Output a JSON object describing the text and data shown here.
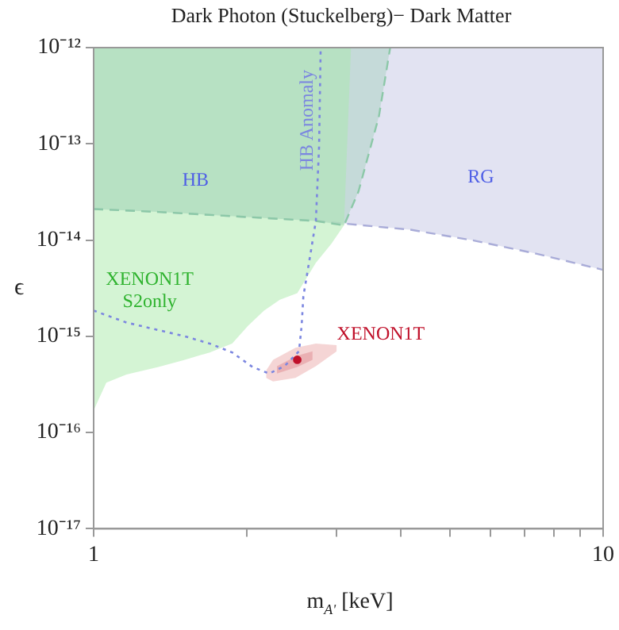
{
  "chart_data": {
    "type": "area",
    "title": "Dark Photon (Stuckelberg)− Dark Matter",
    "xlabel": "m$_{A'}$ [keV]",
    "ylabel": "ϵ",
    "log": "xy",
    "grid": false,
    "legend": false,
    "xlim": [
      1,
      10
    ],
    "ylim": [
      1e-17,
      1e-12
    ],
    "xticks": [
      1,
      {
        "value": 2,
        "label": null
      },
      {
        "value": 3,
        "label": null
      },
      {
        "value": 4,
        "label": null
      },
      {
        "value": 5,
        "label": null
      },
      {
        "value": 6,
        "label": null
      },
      {
        "value": 7,
        "label": null
      },
      {
        "value": 8,
        "label": null
      },
      {
        "value": 9,
        "label": null
      },
      10
    ],
    "yticks": [
      {
        "value": 1e-17,
        "label": "10⁻¹⁷"
      },
      {
        "value": 1e-16,
        "label": "10⁻¹⁶"
      },
      {
        "value": 1e-15,
        "label": "10⁻¹⁵"
      },
      {
        "value": 1e-14,
        "label": "10⁻¹⁴"
      },
      {
        "value": 1e-13,
        "label": "10⁻¹³"
      },
      {
        "value": 1e-12,
        "label": "10⁻¹²"
      }
    ],
    "series": [
      {
        "type": "line",
        "color": "#a9acd8",
        "line_style": "dashed",
        "x": [
          1,
          1.34,
          1.91,
          2.73,
          4.19,
          5.57,
          7.41,
          10
        ],
        "values": [
          2.1e-14,
          1.96e-14,
          1.76e-14,
          1.58e-14,
          1.28e-14,
          9.9e-15,
          7.2e-15,
          4.9e-15
        ],
        "lower": [
          2.1e-14,
          1.96e-14,
          1.76e-14,
          1.58e-14,
          1.28e-14,
          9.9e-15,
          7.2e-15,
          4.9e-15
        ],
        "upper": [
          1e-12,
          1e-12,
          1e-12,
          1e-12,
          1e-12,
          1e-12,
          1e-12,
          1e-12
        ]
      },
      {
        "color": "#c4f0c4",
        "x": [
          1,
          1.059,
          1.16,
          1.34,
          1.51,
          1.69,
          1.87,
          2.01,
          2.16,
          2.32,
          2.51,
          2.73,
          2.93,
          3.1,
          3.2
        ],
        "values": [
          null,
          null,
          null,
          null,
          null,
          null,
          null,
          null,
          null,
          null,
          null,
          null,
          null,
          null,
          null
        ],
        "lower": [
          1.7e-16,
          3.3e-16,
          4e-16,
          4.8e-16,
          5.7e-16,
          6.8e-16,
          8.4e-16,
          1.29e-15,
          1.85e-15,
          2.4e-15,
          2.8e-15,
          5.8e-15,
          9.2e-15,
          1.42e-14,
          1e-12
        ],
        "upper": [
          1e-12,
          1e-12,
          1e-12,
          1e-12,
          1e-12,
          1e-12,
          1e-12,
          1e-12,
          1e-12,
          1e-12,
          1e-12,
          1e-12,
          1e-12,
          1e-12,
          1e-12
        ]
      },
      {
        "type": "line",
        "color": "#8cc8a8",
        "line_style": "dashed",
        "x": [
          1,
          1.34,
          1.91,
          2.73,
          3.1,
          3.31,
          3.63,
          3.82
        ],
        "values": [
          2.1e-14,
          1.96e-14,
          1.76e-14,
          1.58e-14,
          1.42e-14,
          3.2e-14,
          1.93e-13,
          1e-12
        ],
        "lower": [
          2.1e-14,
          1.96e-14,
          1.76e-14,
          1.58e-14,
          1.42e-14,
          3.2e-14,
          1.93e-13,
          1e-12
        ],
        "upper": [
          1e-12,
          1e-12,
          1e-12,
          1e-12,
          1e-12,
          1e-12,
          1e-12,
          1e-12
        ]
      },
      {
        "type": "area",
        "color": "#f3cccc",
        "x": [
          2.18,
          2.25,
          2.49,
          2.73,
          3.0
        ],
        "values": [
          null,
          null,
          null,
          null,
          null
        ],
        "lower": [
          3.7e-16,
          3.4e-16,
          3.7e-16,
          4.9e-16,
          7e-16
        ],
        "upper": [
          4.4e-16,
          5.7e-16,
          7.6e-16,
          8.4e-16,
          8.1e-16
        ]
      },
      {
        "type": "area",
        "color": "#e8a8ac",
        "x": [
          2.29,
          2.51,
          2.69
        ],
        "values": [
          null,
          null,
          null
        ],
        "lower": [
          4.1e-16,
          4.8e-16,
          5.7e-16
        ],
        "upper": [
          4.9e-16,
          6.3e-16,
          7e-16
        ]
      },
      {
        "type": "line",
        "name": "HB Anomaly",
        "color": "#7b86e0",
        "line_style": "dotted",
        "x": [
          1,
          1.16,
          1.34,
          1.51,
          1.69,
          1.87,
          2.05,
          2.21,
          2.37,
          2.53,
          2.56,
          2.58,
          2.67,
          2.73,
          2.77,
          2.79
        ],
        "values": [
          1.85e-15,
          1.39e-15,
          1.16e-15,
          1e-15,
          8.4e-16,
          6.8e-16,
          4.8e-16,
          4.1e-16,
          4.9e-16,
          7e-16,
          1.29e-15,
          2.6e-15,
          7.7e-15,
          1.58e-14,
          9.4e-14,
          1e-12
        ]
      },
      {
        "type": "scatter",
        "name": "XENON1T",
        "color": "#c0102a",
        "marker": "circle",
        "x": [
          2.51
        ],
        "values": [
          5.7e-16
        ]
      }
    ],
    "annotations": [
      "HB",
      "RG",
      "XENON1T\nS2only"
    ]
  }
}
